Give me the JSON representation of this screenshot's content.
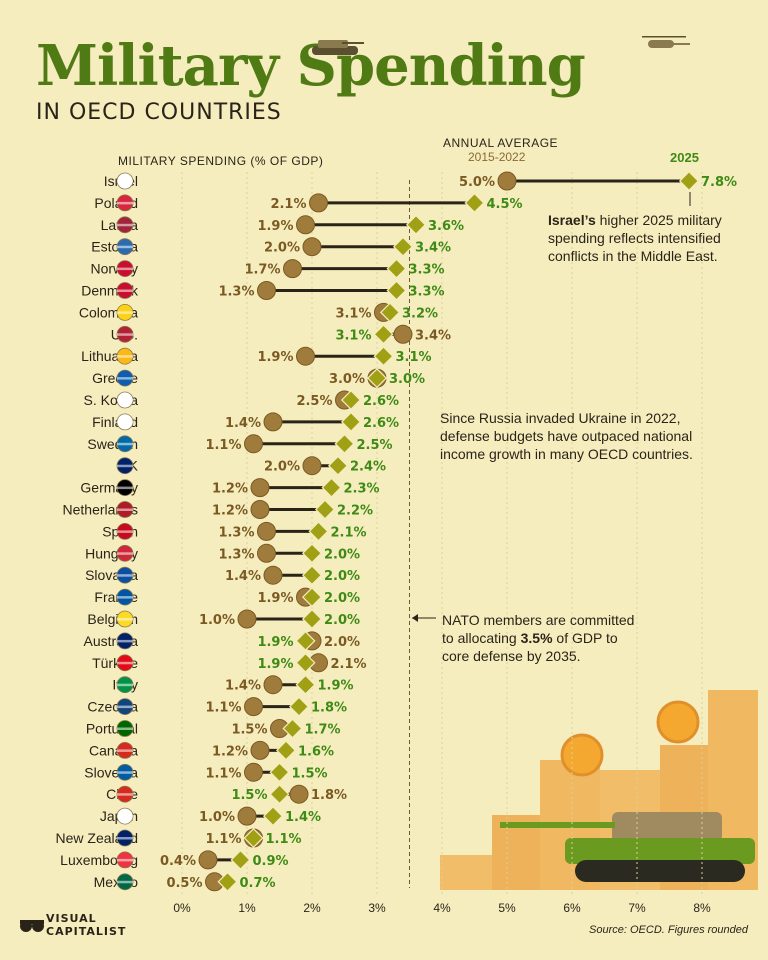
{
  "title": {
    "main": "Military Spending",
    "sub": "IN OECD COUNTRIES"
  },
  "headers": {
    "axis_title": "MILITARY SPENDING (% OF GDP)",
    "annual": "ANNUAL AVERAGE",
    "range": "2015-2022",
    "year": "2025"
  },
  "notes": {
    "israel_bold": "Israel’s",
    "israel_rest_1": " higher 2025 military",
    "israel_rest_2": "spending reflects intensified",
    "israel_rest_3": "conflicts in the Middle East.",
    "russia_1": "Since Russia invaded Ukraine in 2022,",
    "russia_2": "defense budgets have outpaced national",
    "russia_3": "income growth in many OECD countries.",
    "nato_1": "NATO members are committed",
    "nato_2_pre": "to allocating ",
    "nato_2_bold": "3.5%",
    "nato_2_post": " of GDP to",
    "nato_3": "core defense by 2035."
  },
  "brand": {
    "line1": "VISUAL",
    "line2": "CAPITALIST"
  },
  "source": "Source: OECD. Figures rounded",
  "colors": {
    "background": "#f6edbf",
    "title_green": "#4f7a14",
    "avg_dot": "#a07c3c",
    "diamond_2025": "#a0a014",
    "label_2025": "#3f8a14",
    "label_avg": "#7a5a22",
    "line": "#2a2418"
  },
  "chart_data": {
    "type": "dumbbell",
    "xlim": [
      0,
      8
    ],
    "ticks": [
      "0%",
      "1%",
      "2%",
      "3%",
      "4%",
      "5%",
      "6%",
      "7%",
      "8%"
    ],
    "nato_target": 3.5,
    "series": [
      {
        "name": "2015-2022"
      },
      {
        "name": "2025"
      }
    ],
    "rows": [
      {
        "country": "Israel",
        "avg": 5.0,
        "v2025": 7.8,
        "avg_label": "5.0%",
        "label_2025": "7.8%"
      },
      {
        "country": "Poland",
        "avg": 2.1,
        "v2025": 4.5,
        "avg_label": "2.1%",
        "label_2025": "4.5%"
      },
      {
        "country": "Latvia",
        "avg": 1.9,
        "v2025": 3.6,
        "avg_label": "1.9%",
        "label_2025": "3.6%"
      },
      {
        "country": "Estonia",
        "avg": 2.0,
        "v2025": 3.4,
        "avg_label": "2.0%",
        "label_2025": "3.4%"
      },
      {
        "country": "Norway",
        "avg": 1.7,
        "v2025": 3.3,
        "avg_label": "1.7%",
        "label_2025": "3.3%"
      },
      {
        "country": "Denmark",
        "avg": 1.3,
        "v2025": 3.3,
        "avg_label": "1.3%",
        "label_2025": "3.3%"
      },
      {
        "country": "Colombia",
        "avg": 3.1,
        "v2025": 3.2,
        "avg_label": "3.1%",
        "label_2025": "3.2%"
      },
      {
        "country": "U.S.",
        "avg": 3.4,
        "v2025": 3.1,
        "avg_label": "3.4%",
        "label_2025": "3.1%"
      },
      {
        "country": "Lithuania",
        "avg": 1.9,
        "v2025": 3.1,
        "avg_label": "1.9%",
        "label_2025": "3.1%"
      },
      {
        "country": "Greece",
        "avg": 3.0,
        "v2025": 3.0,
        "avg_label": "3.0%",
        "label_2025": "3.0%"
      },
      {
        "country": "S. Korea",
        "avg": 2.5,
        "v2025": 2.6,
        "avg_label": "2.5%",
        "label_2025": "2.6%"
      },
      {
        "country": "Finland",
        "avg": 1.4,
        "v2025": 2.6,
        "avg_label": "1.4%",
        "label_2025": "2.6%"
      },
      {
        "country": "Sweden",
        "avg": 1.1,
        "v2025": 2.5,
        "avg_label": "1.1%",
        "label_2025": "2.5%"
      },
      {
        "country": "UK",
        "avg": 2.0,
        "v2025": 2.4,
        "avg_label": "2.0%",
        "label_2025": "2.4%"
      },
      {
        "country": "Germany",
        "avg": 1.2,
        "v2025": 2.3,
        "avg_label": "1.2%",
        "label_2025": "2.3%"
      },
      {
        "country": "Netherlands",
        "avg": 1.2,
        "v2025": 2.2,
        "avg_label": "1.2%",
        "label_2025": "2.2%"
      },
      {
        "country": "Spain",
        "avg": 1.3,
        "v2025": 2.1,
        "avg_label": "1.3%",
        "label_2025": "2.1%"
      },
      {
        "country": "Hungary",
        "avg": 1.3,
        "v2025": 2.0,
        "avg_label": "1.3%",
        "label_2025": "2.0%"
      },
      {
        "country": "Slovakia",
        "avg": 1.4,
        "v2025": 2.0,
        "avg_label": "1.4%",
        "label_2025": "2.0%"
      },
      {
        "country": "France",
        "avg": 1.9,
        "v2025": 2.0,
        "avg_label": "1.9%",
        "label_2025": "2.0%"
      },
      {
        "country": "Belgium",
        "avg": 1.0,
        "v2025": 2.0,
        "avg_label": "1.0%",
        "label_2025": "2.0%"
      },
      {
        "country": "Australia",
        "avg": 2.0,
        "v2025": 1.9,
        "avg_label": "2.0%",
        "label_2025": "1.9%"
      },
      {
        "country": "Türkiye",
        "avg": 2.1,
        "v2025": 1.9,
        "avg_label": "2.1%",
        "label_2025": "1.9%"
      },
      {
        "country": "Italy",
        "avg": 1.4,
        "v2025": 1.9,
        "avg_label": "1.4%",
        "label_2025": "1.9%"
      },
      {
        "country": "Czechia",
        "avg": 1.1,
        "v2025": 1.8,
        "avg_label": "1.1%",
        "label_2025": "1.8%"
      },
      {
        "country": "Portugal",
        "avg": 1.5,
        "v2025": 1.7,
        "avg_label": "1.5%",
        "label_2025": "1.7%"
      },
      {
        "country": "Canada",
        "avg": 1.2,
        "v2025": 1.6,
        "avg_label": "1.2%",
        "label_2025": "1.6%"
      },
      {
        "country": "Slovenia",
        "avg": 1.1,
        "v2025": 1.5,
        "avg_label": "1.1%",
        "label_2025": "1.5%"
      },
      {
        "country": "Chile",
        "avg": 1.8,
        "v2025": 1.5,
        "avg_label": "1.8%",
        "label_2025": "1.5%"
      },
      {
        "country": "Japan",
        "avg": 1.0,
        "v2025": 1.4,
        "avg_label": "1.0%",
        "label_2025": "1.4%"
      },
      {
        "country": "New Zealand",
        "avg": 1.1,
        "v2025": 1.1,
        "avg_label": "1.1%",
        "label_2025": "1.1%"
      },
      {
        "country": "Luxembourg",
        "avg": 0.4,
        "v2025": 0.9,
        "avg_label": "0.4%",
        "label_2025": "0.9%"
      },
      {
        "country": "Mexico",
        "avg": 0.5,
        "v2025": 0.7,
        "avg_label": "0.5%",
        "label_2025": "0.7%"
      }
    ]
  }
}
